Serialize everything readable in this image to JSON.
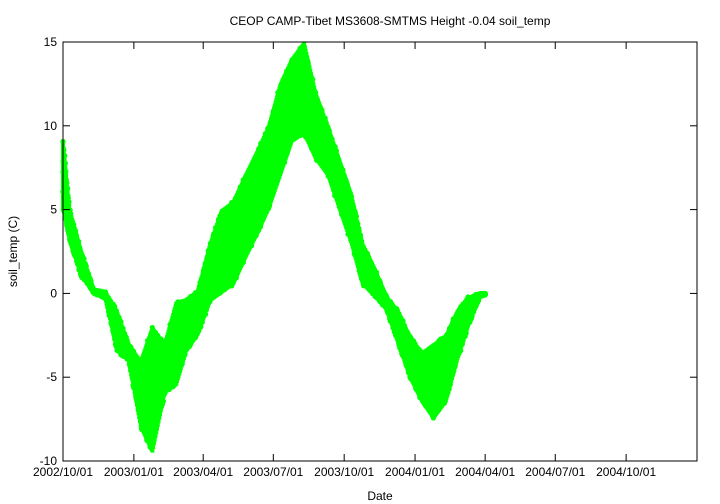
{
  "chart_data": {
    "type": "scatter",
    "title": "CEOP CAMP-Tibet MS3608-SMTMS Height -0.04 soil_temp",
    "xlabel": "Date",
    "ylabel": "soil_temp (C)",
    "xlim": [
      "2002-10-01",
      "2005-01-01"
    ],
    "ylim": [
      -10,
      15
    ],
    "x_ticks": [
      "2002/10/01",
      "2003/01/01",
      "2003/04/01",
      "2003/07/01",
      "2003/10/01",
      "2004/01/01",
      "2004/04/01",
      "2004/07/01",
      "2004/10/01"
    ],
    "y_ticks": [
      -10,
      -5,
      0,
      5,
      10,
      15
    ],
    "grid": false,
    "series": [
      {
        "color": "#00ff00",
        "envelope": {
          "date": [
            "2002-10-01",
            "2002-10-10",
            "2002-10-25",
            "2002-11-10",
            "2002-11-25",
            "2002-12-10",
            "2002-12-25",
            "2003-01-10",
            "2003-01-25",
            "2003-02-10",
            "2003-02-25",
            "2003-03-10",
            "2003-03-25",
            "2003-04-10",
            "2003-04-25",
            "2003-05-10",
            "2003-05-25",
            "2003-06-10",
            "2003-06-25",
            "2003-07-10",
            "2003-07-25",
            "2003-08-10",
            "2003-08-25",
            "2003-09-10",
            "2003-09-25",
            "2003-10-10",
            "2003-10-25",
            "2003-11-10",
            "2003-11-25",
            "2003-12-10",
            "2003-12-25",
            "2004-01-10",
            "2004-01-25",
            "2004-02-10",
            "2004-02-25",
            "2004-03-10",
            "2004-03-25",
            "2004-04-01"
          ],
          "min": [
            5,
            3,
            1,
            0,
            -0.3,
            -3.5,
            -4,
            -8,
            -9.5,
            -6,
            -5.5,
            -3.5,
            -2.5,
            -0.5,
            0,
            0.5,
            2,
            3.5,
            5,
            7,
            9,
            9.5,
            8,
            7,
            5,
            3,
            0.5,
            -0.2,
            -1,
            -3,
            -5,
            -6.5,
            -7.5,
            -6.5,
            -4,
            -2,
            -0.2,
            -0.1
          ],
          "max": [
            9.2,
            5,
            2.5,
            0.2,
            0.1,
            -1,
            -3,
            -4,
            -2,
            -3,
            -0.5,
            -0.3,
            0.2,
            3,
            5,
            5.5,
            7,
            8.5,
            10,
            12.5,
            14,
            15,
            12,
            10,
            8,
            6,
            3,
            1.5,
            -0.2,
            -1,
            -2.5,
            -3.5,
            -3,
            -2.5,
            -1,
            -0.2,
            0,
            0
          ]
        }
      }
    ]
  }
}
